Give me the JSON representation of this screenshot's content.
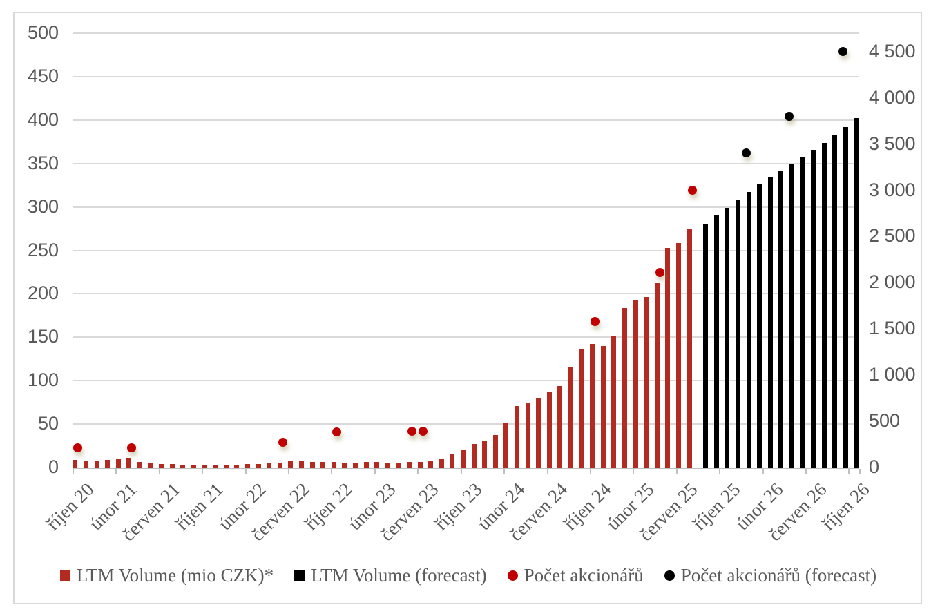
{
  "chart_data": {
    "type": "bar",
    "subtype": "combo-bar-scatter-dual-axis",
    "x_axis": {
      "months_total": 73,
      "first_month": "říjen 20",
      "last_month": "říjen 26",
      "tick_every_n_months": 4,
      "tick_labels": [
        "říjen 20",
        "únor 21",
        "červen 21",
        "říjen 21",
        "únor 22",
        "červen 22",
        "říjen 22",
        "únor 23",
        "červen 23",
        "říjen 23",
        "únor 24",
        "červen 24",
        "říjen 24",
        "únor 25",
        "červen 25",
        "říjen 25",
        "únor 26",
        "červen 26",
        "říjen 26"
      ]
    },
    "left_axis": {
      "min": 0,
      "max": 500,
      "step": 50,
      "labels": [
        "0",
        "50",
        "100",
        "150",
        "200",
        "250",
        "300",
        "350",
        "400",
        "450",
        "500"
      ]
    },
    "right_axis": {
      "min": 0,
      "max_label": 4500,
      "step": 500,
      "scale_max": 4700,
      "labels": [
        "0",
        "500",
        "1 000",
        "1 500",
        "2 000",
        "2 500",
        "3 000",
        "3 500",
        "4 000",
        "4 500"
      ]
    },
    "grid": true,
    "legend_position": "bottom",
    "series": [
      {
        "name": "LTM Volume (mio CZK)*",
        "type": "bar",
        "marker": "square",
        "color": "#B22A20",
        "start_index": 0,
        "values": [
          9,
          8,
          7,
          9,
          10,
          11,
          6,
          5,
          4,
          4,
          3,
          3,
          3,
          3,
          3,
          3,
          4,
          4,
          5,
          5,
          7,
          7,
          6,
          6,
          6,
          5,
          5,
          6,
          6,
          5,
          5,
          6,
          6,
          7,
          10,
          15,
          21,
          27,
          31,
          37,
          51,
          71,
          75,
          80,
          87,
          94,
          116,
          136,
          142,
          140,
          151,
          184,
          192,
          196,
          212,
          253,
          258,
          275
        ]
      },
      {
        "name": "LTM Volume (forecast)",
        "type": "bar",
        "marker": "square",
        "color": "#000000",
        "start_index": 58,
        "values": [
          281,
          290,
          299,
          308,
          317,
          326,
          334,
          342,
          350,
          358,
          366,
          374,
          383,
          392,
          402
        ]
      },
      {
        "name": "Počet akcionářů",
        "type": "scatter",
        "marker": "circle",
        "color": "#C00000",
        "points": [
          {
            "month_index": 0,
            "value": 210
          },
          {
            "month_index": 5,
            "value": 215
          },
          {
            "month_index": 19,
            "value": 270
          },
          {
            "month_index": 24,
            "value": 385
          },
          {
            "month_index": 31,
            "value": 390
          },
          {
            "month_index": 32,
            "value": 390
          },
          {
            "month_index": 48,
            "value": 1580
          },
          {
            "month_index": 54,
            "value": 2110
          },
          {
            "month_index": 57,
            "value": 3000
          }
        ]
      },
      {
        "name": "Počet akcionářů (forecast)",
        "type": "scatter",
        "marker": "circle",
        "color": "#000000",
        "points": [
          {
            "month_index": 62,
            "value": 3400
          },
          {
            "month_index": 66,
            "value": 3800
          },
          {
            "month_index": 71,
            "value": 4500
          }
        ]
      }
    ],
    "colors": {
      "bar_actual": "#B22A20",
      "bar_forecast": "#000000",
      "dot_actual": "#C00000",
      "dot_forecast": "#000000",
      "gridline": "#D9D9D9",
      "axis_line": "#BFBFBF",
      "axis_text": "#595959",
      "frame_border": "#D9D9D9"
    }
  }
}
